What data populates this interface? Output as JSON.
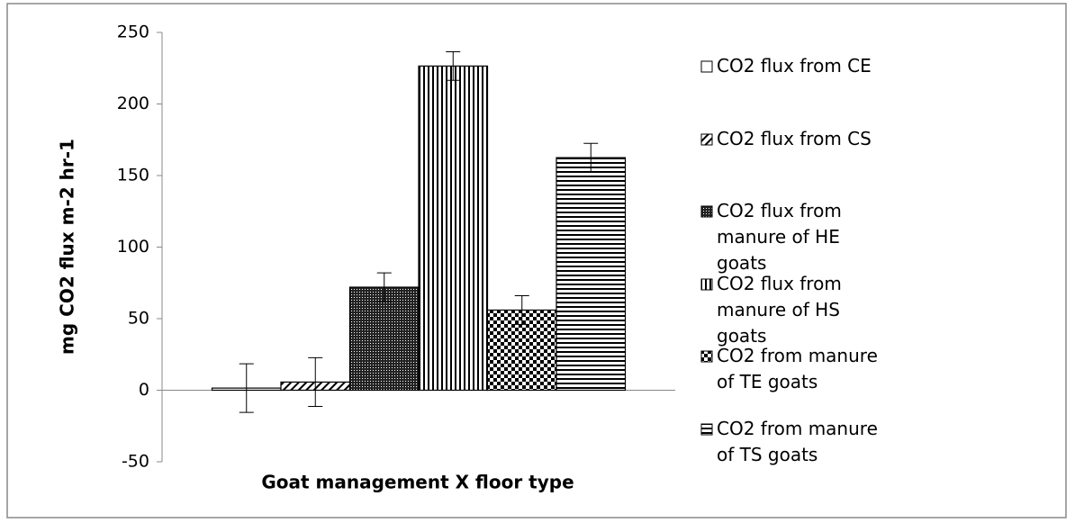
{
  "chart_data": {
    "type": "bar",
    "ylabel": "mg CO2 flux m-2 hr-1",
    "xlabel": "Goat management X floor type",
    "ylim": [
      -50,
      250
    ],
    "yticks": [
      -50,
      0,
      50,
      100,
      150,
      200,
      250
    ],
    "legend": "right",
    "series": [
      {
        "name": "CO2 flux from CE",
        "color": "#000000",
        "pattern": "none",
        "values": [
          1.5
        ],
        "errors": [
          17
        ]
      },
      {
        "name": "CO2 flux from CS",
        "color": "#000000",
        "pattern": "diagonal",
        "values": [
          5.7
        ],
        "errors": [
          17
        ]
      },
      {
        "name": "CO2 flux from manure of HE goats",
        "color": "#000000",
        "pattern": "dots",
        "values": [
          72
        ],
        "errors": [
          10
        ]
      },
      {
        "name": "CO2 flux from manure of HS goats",
        "color": "#000000",
        "pattern": "vertical",
        "values": [
          226.5
        ],
        "errors": [
          10
        ]
      },
      {
        "name": "CO2 from manure of TE goats",
        "color": "#000000",
        "pattern": "checker",
        "values": [
          56
        ],
        "errors": [
          10
        ]
      },
      {
        "name": "CO2 from manure of TS goats",
        "color": "#000000",
        "pattern": "horizontal",
        "values": [
          162.5
        ],
        "errors": [
          10
        ]
      }
    ]
  }
}
